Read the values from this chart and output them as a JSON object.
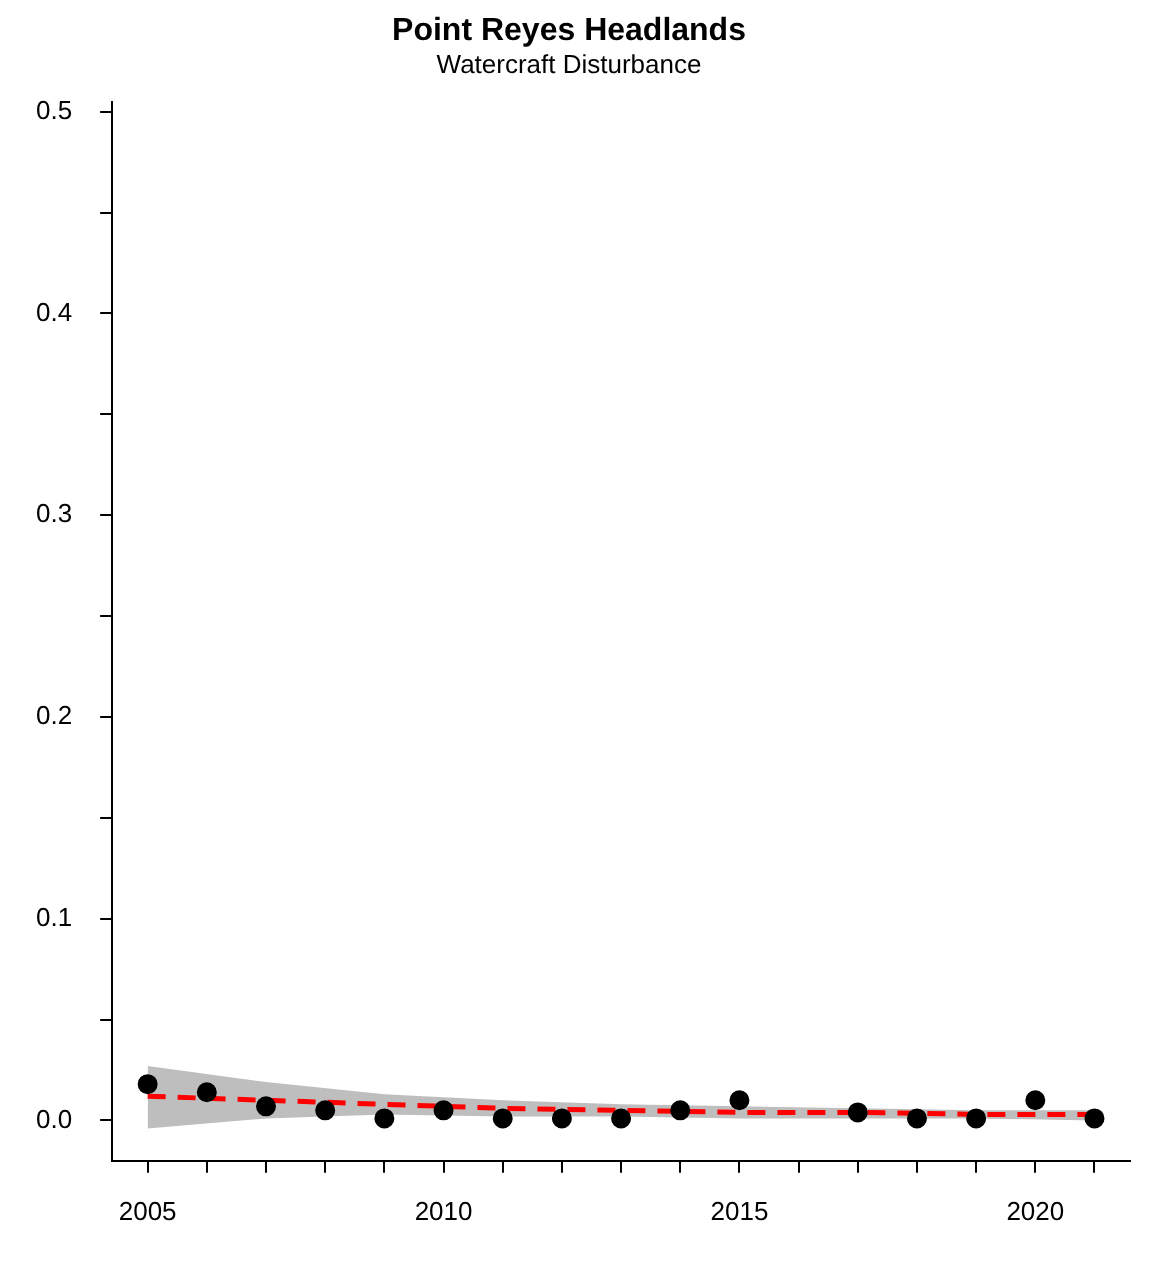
{
  "chart_data": {
    "type": "scatter",
    "title": "Point Reyes Headlands",
    "subtitle": "Watercraft Disturbance",
    "x": [
      2005,
      2006,
      2007,
      2008,
      2009,
      2010,
      2011,
      2012,
      2013,
      2014,
      2015,
      2017,
      2018,
      2019,
      2020,
      2021
    ],
    "series": [
      {
        "color": "#000000",
        "marker": "circle",
        "values": [
          0.018,
          0.014,
          0.007,
          0.005,
          0.001,
          0.005,
          0.001,
          0.001,
          0.001,
          0.005,
          0.01,
          0.004,
          0.001,
          0.001,
          0.01,
          0.001
        ]
      },
      {
        "type": "line",
        "color": "#ff0000",
        "line_style": "dashed",
        "x": [
          2005,
          2007,
          2009,
          2011,
          2013,
          2015,
          2017,
          2019,
          2021
        ],
        "marker": "none",
        "values": [
          0.012,
          0.01,
          0.008,
          0.006,
          0.005,
          0.004,
          0.004,
          0.003,
          0.003
        ],
        "lower": [
          -0.004,
          0.001,
          0.003,
          0.002,
          0.002,
          0.001,
          0.001,
          0.001,
          0.0
        ],
        "upper": [
          0.027,
          0.019,
          0.013,
          0.01,
          0.008,
          0.007,
          0.006,
          0.005,
          0.005
        ]
      }
    ],
    "grid": false,
    "legend": false,
    "xlim": [
      2004.4,
      2021.6
    ],
    "xticks": [
      2005,
      {
        "value": 2006,
        "label": null
      },
      {
        "value": 2007,
        "label": null
      },
      {
        "value": 2008,
        "label": null
      },
      {
        "value": 2009,
        "label": null
      },
      2010,
      {
        "value": 2011,
        "label": null
      },
      {
        "value": 2012,
        "label": null
      },
      {
        "value": 2013,
        "label": null
      },
      {
        "value": 2014,
        "label": null
      },
      2015,
      {
        "value": 2016,
        "label": null
      },
      {
        "value": 2017,
        "label": null
      },
      {
        "value": 2018,
        "label": null
      },
      {
        "value": 2019,
        "label": null
      },
      2020,
      {
        "value": 2021,
        "label": null
      }
    ],
    "ylim": [
      -0.02,
      0.505
    ],
    "yticks": [
      {
        "value": 0,
        "label": "0.0"
      },
      {
        "value": 0.05,
        "label": null
      },
      {
        "value": 0.1,
        "label": "0.1"
      },
      {
        "value": 0.15,
        "label": null
      },
      {
        "value": 0.2,
        "label": "0.2"
      },
      {
        "value": 0.25,
        "label": null
      },
      {
        "value": 0.3,
        "label": "0.3"
      },
      {
        "value": 0.35,
        "label": null
      },
      {
        "value": 0.4,
        "label": "0.4"
      },
      {
        "value": 0.45,
        "label": null
      },
      {
        "value": 0.5,
        "label": "0.5"
      }
    ]
  }
}
